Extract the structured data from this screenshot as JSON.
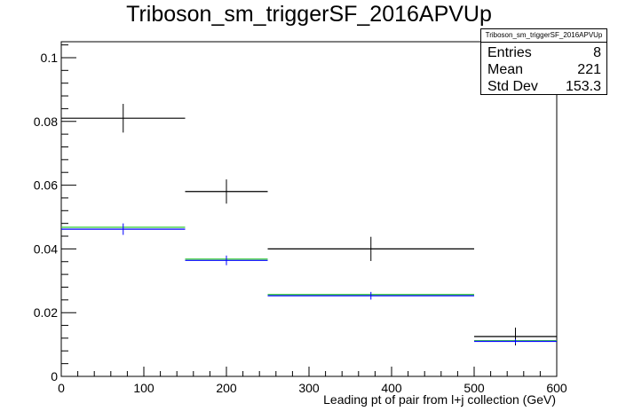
{
  "title": "Triboson_sm_triggerSF_2016APVUp",
  "stats": {
    "name": "Triboson_sm_triggerSF_2016APVUp",
    "rows": [
      {
        "label": "Entries",
        "value": "8"
      },
      {
        "label": "Mean",
        "value": "221"
      },
      {
        "label": "Std Dev",
        "value": "153.3"
      }
    ]
  },
  "chart_data": {
    "type": "histogram",
    "title": "Triboson_sm_triggerSF_2016APVUp",
    "xlabel": "Leading pt of pair from l+j collection (GeV)",
    "ylabel": "",
    "xlim": [
      0,
      600
    ],
    "ylim": [
      0,
      0.105
    ],
    "x_ticks": [
      0,
      100,
      200,
      300,
      400,
      500,
      600
    ],
    "y_ticks": [
      0,
      0.02,
      0.04,
      0.06,
      0.08,
      0.1
    ],
    "x_tick_labels": [
      "0",
      "100",
      "200",
      "300",
      "400",
      "500",
      "600"
    ],
    "y_tick_labels": [
      "0",
      "0.02",
      "0.04",
      "0.06",
      "0.08",
      "0.1"
    ],
    "bin_edges": [
      0,
      150,
      250,
      500,
      600
    ],
    "grid": false,
    "series": [
      {
        "color": "#000000",
        "style": "error-cross",
        "values": [
          0.081,
          0.058,
          0.04,
          0.0125
        ],
        "errors": [
          0.0045,
          0.0038,
          0.0038,
          0.0028
        ]
      },
      {
        "color": "#33cc33",
        "style": "line",
        "values": [
          0.0468,
          0.0368,
          0.0257,
          0.0112
        ],
        "errors": [
          0,
          0,
          0,
          0
        ]
      },
      {
        "color": "#0000ff",
        "style": "error-cross",
        "values": [
          0.0462,
          0.0364,
          0.0253,
          0.011
        ],
        "errors": [
          0.0018,
          0.0015,
          0.0012,
          0.0007
        ]
      }
    ]
  }
}
